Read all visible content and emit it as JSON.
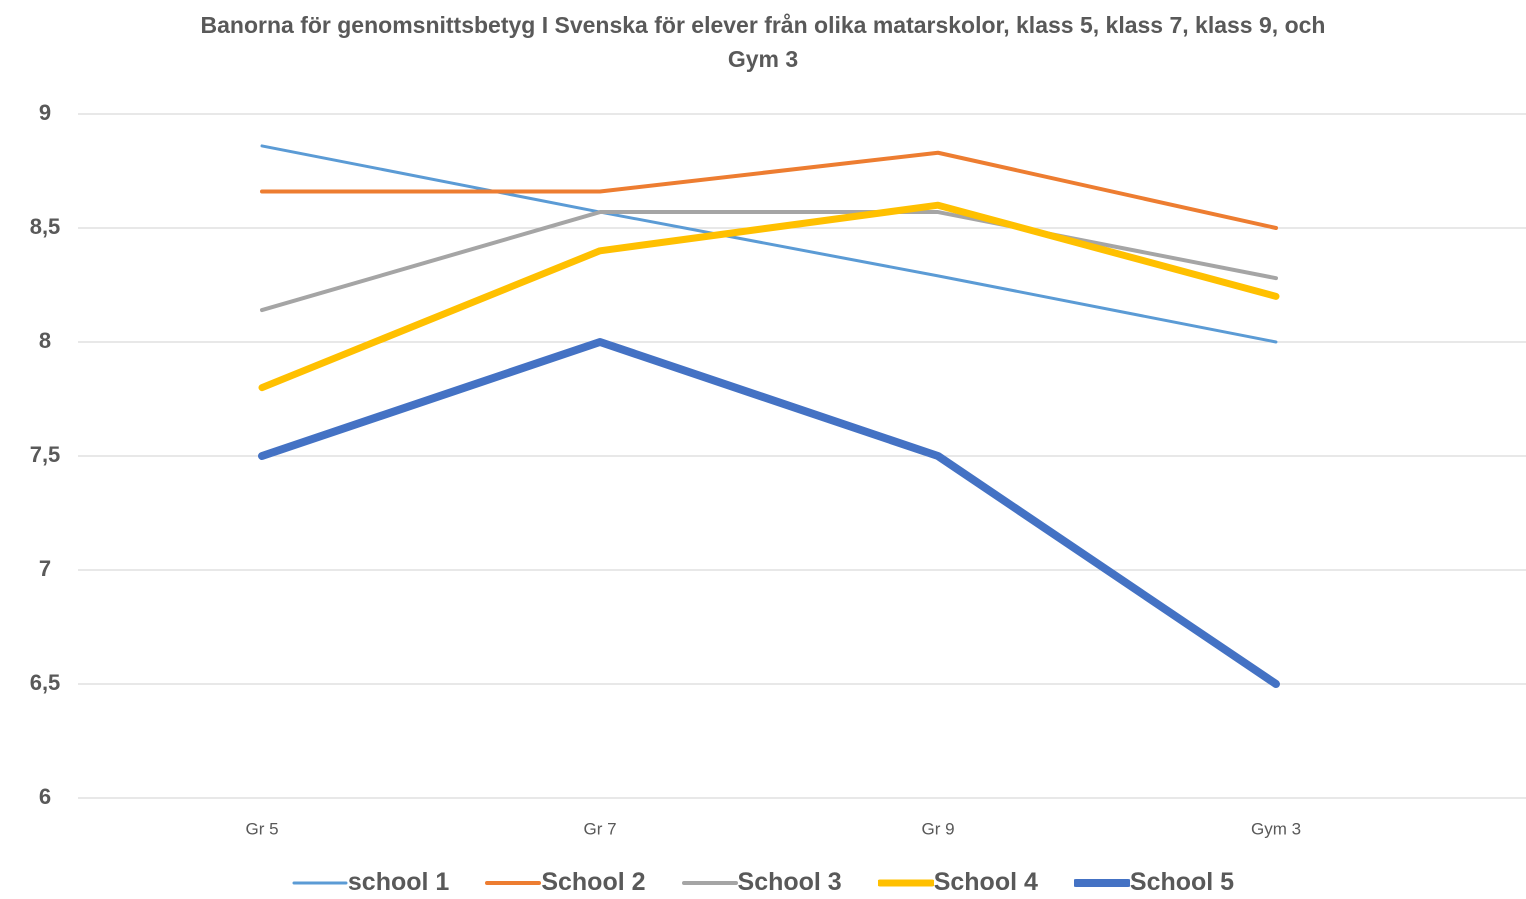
{
  "chart_data": {
    "type": "line",
    "title": "Banorna för genomsnittsbetyg I Svenska för elever från olika matarskolor, klass 5, klass 7, klass 9, och Gym 3",
    "categories": [
      "Gr 5",
      "Gr 7",
      "Gr 9",
      "Gym 3"
    ],
    "series": [
      {
        "name": "school 1",
        "color": "#5b9bd5",
        "line_width": 3,
        "values": [
          8.86,
          8.57,
          8.29,
          8.0
        ]
      },
      {
        "name": "School 2",
        "color": "#ed7d31",
        "line_width": 4,
        "values": [
          8.66,
          8.66,
          8.83,
          8.5
        ]
      },
      {
        "name": "School 3",
        "color": "#a5a5a5",
        "line_width": 4,
        "values": [
          8.14,
          8.57,
          8.57,
          8.28
        ]
      },
      {
        "name": "School 4",
        "color": "#ffc000",
        "line_width": 7,
        "values": [
          7.8,
          8.4,
          8.6,
          8.2
        ]
      },
      {
        "name": "School 5",
        "color": "#4472c4",
        "line_width": 8,
        "values": [
          7.5,
          8.0,
          7.5,
          6.5
        ]
      }
    ],
    "ylim": [
      6,
      9
    ],
    "yticks": [
      6,
      {
        "value": 6.5,
        "label": "6,5"
      },
      7,
      {
        "value": 7.5,
        "label": "7,5"
      },
      8,
      {
        "value": 8.5,
        "label": "8,5"
      },
      9
    ],
    "grid": true,
    "legend": "bottom"
  }
}
